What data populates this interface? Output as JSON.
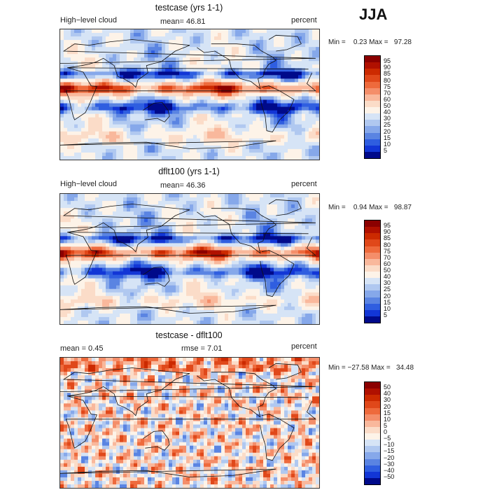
{
  "season": "JJA",
  "field_label": "High−level cloud",
  "units": "percent",
  "panels": [
    {
      "title": "testcase (yrs 1-1)",
      "mean_text": "mean=   46.81",
      "minmax_text": "Min =    0.23 Max =   97.28",
      "type": "field"
    },
    {
      "title": "dflt100 (yrs 1-1)",
      "mean_text": "mean=   46.36",
      "minmax_text": "Min =    0.94 Max =   98.87",
      "type": "field"
    },
    {
      "title": "testcase - dflt100",
      "mean_text": "mean =     0.45",
      "rmse_text": "rmse =    7.01",
      "minmax_text": "Min = −27.58 Max =   34.48",
      "type": "diff"
    }
  ],
  "colorbars": {
    "field": {
      "levels": [
        "95",
        "90",
        "85",
        "80",
        "75",
        "70",
        "60",
        "50",
        "40",
        "30",
        "25",
        "20",
        "15",
        "10",
        "5"
      ],
      "colors": [
        "#8b0000",
        "#b01000",
        "#cc2a00",
        "#e0481a",
        "#ee6a3c",
        "#f48e6a",
        "#f9b89c",
        "#fbdcc8",
        "#fdf3e8",
        "#d6e4f6",
        "#b0c8f0",
        "#86a8ea",
        "#5a84e2",
        "#2f5ee0",
        "#1236d6",
        "#000a8a"
      ]
    },
    "diff": {
      "levels": [
        "50",
        "40",
        "30",
        "20",
        "15",
        "10",
        "5",
        "0",
        "−5",
        "−10",
        "−15",
        "−20",
        "−30",
        "−40",
        "−50"
      ],
      "colors": [
        "#8b0000",
        "#b01000",
        "#cc2a00",
        "#e0481a",
        "#ee6a3c",
        "#f48e6a",
        "#f9b89c",
        "#fbdcc8",
        "#fdf3e8",
        "#d6e4f6",
        "#b0c8f0",
        "#86a8ea",
        "#5a84e2",
        "#2f5ee0",
        "#1236d6",
        "#000a8a"
      ]
    }
  }
}
